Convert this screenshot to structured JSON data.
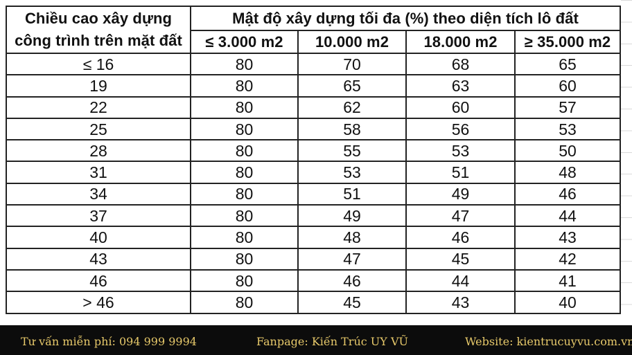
{
  "table": {
    "row_header": [
      "Chiều cao xây dựng",
      "công trình trên mặt đất"
    ],
    "group_header": "Mật độ xây dựng tối đa (%) theo diện tích lô đất",
    "columns": [
      "≤ 3.000 m2",
      "10.000 m2",
      "18.000 m2",
      "≥ 35.000 m2"
    ],
    "rows": [
      {
        "height": "≤ 16",
        "values": [
          "80",
          "70",
          "68",
          "65"
        ]
      },
      {
        "height": "19",
        "values": [
          "80",
          "65",
          "63",
          "60"
        ]
      },
      {
        "height": "22",
        "values": [
          "80",
          "62",
          "60",
          "57"
        ]
      },
      {
        "height": "25",
        "values": [
          "80",
          "58",
          "56",
          "53"
        ]
      },
      {
        "height": "28",
        "values": [
          "80",
          "55",
          "53",
          "50"
        ]
      },
      {
        "height": "31",
        "values": [
          "80",
          "53",
          "51",
          "48"
        ]
      },
      {
        "height": "34",
        "values": [
          "80",
          "51",
          "49",
          "46"
        ]
      },
      {
        "height": "37",
        "values": [
          "80",
          "49",
          "47",
          "44"
        ]
      },
      {
        "height": "40",
        "values": [
          "80",
          "48",
          "46",
          "43"
        ]
      },
      {
        "height": "43",
        "values": [
          "80",
          "47",
          "45",
          "42"
        ]
      },
      {
        "height": "46",
        "values": [
          "80",
          "46",
          "44",
          "41"
        ]
      },
      {
        "height": "> 46",
        "values": [
          "80",
          "45",
          "43",
          "40"
        ]
      }
    ]
  },
  "footer": {
    "consult": "Tư vấn miễn phí:  094 999 9994",
    "fanpage": "Fanpage: Kiến Trúc UY VŨ",
    "website": "Website: kientrucuyvu.com.vn"
  },
  "colors": {
    "footer_bg": "#0c0c0c",
    "footer_text": "#e7c96a",
    "border": "#222222"
  }
}
